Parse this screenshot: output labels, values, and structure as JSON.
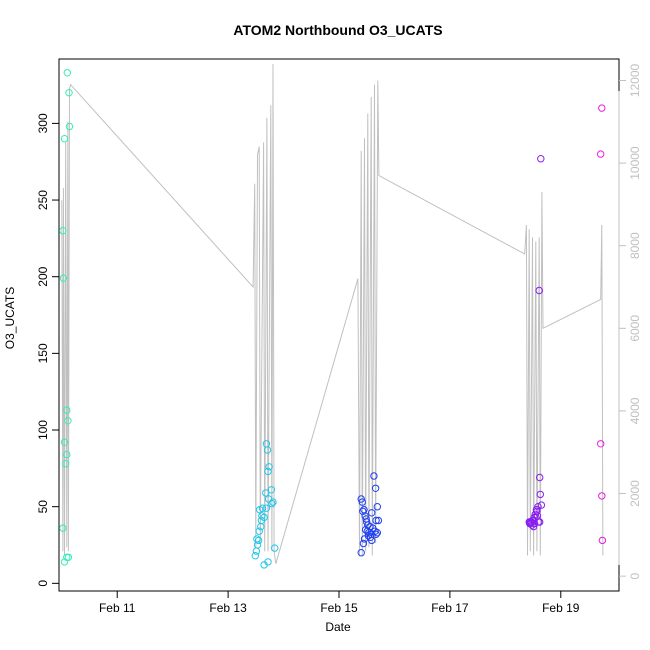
{
  "chart_data": {
    "type": "scatter",
    "title": "ATOM2 Northbound O3_UCATS",
    "xlabel": "Date",
    "ylabel": "O3_UCATS",
    "x_ticks": [
      {
        "day": 11,
        "label": "Feb 11"
      },
      {
        "day": 13,
        "label": "Feb 13"
      },
      {
        "day": 15,
        "label": "Feb 15"
      },
      {
        "day": 17,
        "label": "Feb 17"
      },
      {
        "day": 19,
        "label": "Feb 19"
      }
    ],
    "y_ticks": [
      "0",
      "50",
      "100",
      "150",
      "200",
      "250",
      "300"
    ],
    "y2_ticks": [
      "0",
      "2000",
      "4000",
      "6000",
      "8000",
      "10000",
      "12000"
    ],
    "xlim_days": [
      9.95,
      20.05
    ],
    "ylim": [
      -5,
      342
    ],
    "y2lim": [
      -360,
      12520
    ],
    "grid": false,
    "colors": {
      "axis": "#000000",
      "secondary_axis": "#c0c0c0",
      "altitude_trace": "#c0c0c0"
    },
    "series": [
      {
        "color": "#33eeb8",
        "points": [
          [
            10.1,
            333
          ],
          [
            10.13,
            320
          ],
          [
            10.14,
            298
          ],
          [
            10.05,
            290
          ],
          [
            10.02,
            230
          ],
          [
            10.03,
            199
          ],
          [
            10.09,
            113
          ],
          [
            10.11,
            106
          ],
          [
            10.05,
            92
          ],
          [
            10.09,
            84
          ],
          [
            10.07,
            78
          ],
          [
            10.02,
            36
          ],
          [
            10.09,
            17
          ],
          [
            10.12,
            17
          ],
          [
            10.05,
            14
          ]
        ]
      },
      {
        "color": "#22c6e8",
        "points": [
          [
            13.69,
            91
          ],
          [
            13.71,
            87
          ],
          [
            13.74,
            76
          ],
          [
            13.72,
            73
          ],
          [
            13.78,
            61
          ],
          [
            13.68,
            59
          ],
          [
            13.73,
            55
          ],
          [
            13.81,
            53
          ],
          [
            13.79,
            52
          ],
          [
            13.62,
            49
          ],
          [
            13.69,
            49
          ],
          [
            13.57,
            48
          ],
          [
            13.61,
            44
          ],
          [
            13.65,
            43
          ],
          [
            13.6,
            41
          ],
          [
            13.59,
            37
          ],
          [
            13.56,
            34
          ],
          [
            13.52,
            29
          ],
          [
            13.55,
            28
          ],
          [
            13.53,
            25
          ],
          [
            13.84,
            23
          ],
          [
            13.51,
            21
          ],
          [
            13.49,
            18
          ],
          [
            13.72,
            14
          ],
          [
            13.65,
            12
          ]
        ]
      },
      {
        "color": "#1f3ff0",
        "points": [
          [
            15.63,
            70
          ],
          [
            15.66,
            62
          ],
          [
            15.4,
            55
          ],
          [
            15.42,
            53
          ],
          [
            15.69,
            50
          ],
          [
            15.45,
            48
          ],
          [
            15.43,
            47
          ],
          [
            15.59,
            46
          ],
          [
            15.47,
            44
          ],
          [
            15.49,
            42
          ],
          [
            15.71,
            41
          ],
          [
            15.67,
            41
          ],
          [
            15.5,
            40
          ],
          [
            15.52,
            38
          ],
          [
            15.56,
            37
          ],
          [
            15.61,
            36
          ],
          [
            15.48,
            35
          ],
          [
            15.51,
            34
          ],
          [
            15.65,
            34
          ],
          [
            15.69,
            33
          ],
          [
            15.54,
            33
          ],
          [
            15.58,
            32
          ],
          [
            15.67,
            32
          ],
          [
            15.53,
            31
          ],
          [
            15.57,
            30
          ],
          [
            15.46,
            29
          ],
          [
            15.59,
            28
          ],
          [
            15.44,
            26
          ],
          [
            15.4,
            20
          ]
        ]
      },
      {
        "color": "#8a1ef0",
        "points": [
          [
            18.64,
            277
          ],
          [
            18.61,
            191
          ],
          [
            18.62,
            69
          ],
          [
            18.63,
            58
          ],
          [
            18.65,
            51
          ],
          [
            18.59,
            50
          ],
          [
            18.56,
            48
          ],
          [
            18.57,
            47
          ],
          [
            18.54,
            45
          ],
          [
            18.55,
            43
          ],
          [
            18.52,
            43
          ],
          [
            18.5,
            41
          ],
          [
            18.49,
            41
          ],
          [
            18.47,
            40
          ],
          [
            18.45,
            40
          ],
          [
            18.44,
            39
          ],
          [
            18.53,
            39
          ],
          [
            18.48,
            38
          ],
          [
            18.6,
            40
          ],
          [
            18.51,
            37
          ],
          [
            18.46,
            39
          ],
          [
            18.58,
            44
          ],
          [
            18.43,
            40
          ],
          [
            18.62,
            40
          ]
        ]
      },
      {
        "color": "#e81ee0",
        "points": [
          [
            19.74,
            310
          ],
          [
            19.72,
            280
          ],
          [
            19.72,
            91
          ],
          [
            19.74,
            57
          ],
          [
            19.75,
            28
          ]
        ]
      }
    ],
    "secondary_series": {
      "name": "",
      "color": "#c0c0c0",
      "points": [
        [
          10.0,
          9100
        ],
        [
          10.02,
          600
        ],
        [
          10.03,
          9400
        ],
        [
          10.05,
          500
        ],
        [
          10.07,
          10500
        ],
        [
          10.09,
          700
        ],
        [
          10.11,
          11000
        ],
        [
          10.12,
          600
        ],
        [
          10.14,
          11800
        ],
        [
          10.16,
          11900
        ],
        [
          13.45,
          7000
        ],
        [
          13.48,
          9500
        ],
        [
          13.5,
          700
        ],
        [
          13.53,
          10200
        ],
        [
          13.56,
          10400
        ],
        [
          13.58,
          800
        ],
        [
          13.64,
          10500
        ],
        [
          13.66,
          600
        ],
        [
          13.7,
          11100
        ],
        [
          13.72,
          600
        ],
        [
          13.77,
          11400
        ],
        [
          13.79,
          600
        ],
        [
          13.81,
          12400
        ],
        [
          13.83,
          600
        ],
        [
          13.86,
          300
        ],
        [
          15.34,
          7200
        ],
        [
          15.37,
          500
        ],
        [
          15.4,
          10300
        ],
        [
          15.42,
          500
        ],
        [
          15.46,
          10600
        ],
        [
          15.48,
          600
        ],
        [
          15.52,
          11200
        ],
        [
          15.54,
          700
        ],
        [
          15.58,
          11600
        ],
        [
          15.6,
          500
        ],
        [
          15.64,
          11900
        ],
        [
          15.66,
          800
        ],
        [
          15.7,
          12000
        ],
        [
          15.72,
          9700
        ],
        [
          18.35,
          7800
        ],
        [
          18.38,
          8500
        ],
        [
          18.4,
          500
        ],
        [
          18.43,
          8400
        ],
        [
          18.45,
          600
        ],
        [
          18.49,
          8200
        ],
        [
          18.51,
          500
        ],
        [
          18.55,
          8100
        ],
        [
          18.57,
          600
        ],
        [
          18.61,
          8200
        ],
        [
          18.63,
          500
        ],
        [
          18.66,
          9300
        ],
        [
          18.68,
          6000
        ],
        [
          19.72,
          6700
        ],
        [
          19.74,
          8500
        ],
        [
          19.76,
          500
        ]
      ]
    }
  }
}
